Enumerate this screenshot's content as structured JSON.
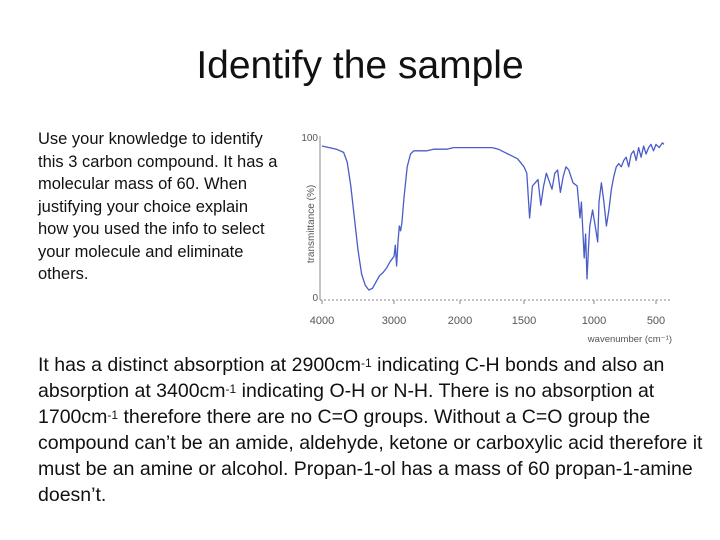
{
  "slide": {
    "title": "Identify the sample",
    "intro": "Use your knowledge to identify this 3 carbon compound. It has a molecular mass of 60. When justifying your choice explain how you used the info to select your molecule and eliminate others."
  },
  "answer": {
    "seg1": "It has a distinct absorption at 2900cm",
    "sup1": "-1",
    "seg2": " indicating C-H bonds and also an absorption at 3400cm",
    "sup2": "-1",
    "seg3": " indicating O-H or N-H. There is no absorption at 1700cm",
    "sup3": "-1",
    "seg4": " therefore there are no C=O groups. Without a C=O group the compound can’t be an amide, aldehyde, ketone or carboxylic acid therefore it must be an amine or alcohol. Propan-1-ol has a mass of 60 propan-1-amine doesn’t."
  },
  "chart_data": {
    "type": "line",
    "xlabel": "wavenumber (cm⁻¹)",
    "ylabel": "transmittance (%)",
    "xlim": [
      4000,
      450
    ],
    "ylim": [
      0,
      100
    ],
    "x_reversed": true,
    "x_ticks": [
      "4000",
      "3000",
      "2000",
      "1500",
      "1000",
      "500"
    ],
    "y_ticks": [
      "100",
      "0"
    ],
    "line_color": "#4a5cc8",
    "series": [
      {
        "points": [
          [
            4000,
            95
          ],
          [
            3900,
            94
          ],
          [
            3800,
            93
          ],
          [
            3700,
            91
          ],
          [
            3650,
            85
          ],
          [
            3600,
            70
          ],
          [
            3550,
            50
          ],
          [
            3500,
            30
          ],
          [
            3450,
            15
          ],
          [
            3400,
            8
          ],
          [
            3350,
            5
          ],
          [
            3300,
            6
          ],
          [
            3250,
            10
          ],
          [
            3200,
            14
          ],
          [
            3150,
            16
          ],
          [
            3100,
            19
          ],
          [
            3050,
            23
          ],
          [
            3000,
            26
          ],
          [
            2980,
            33
          ],
          [
            2960,
            20
          ],
          [
            2940,
            35
          ],
          [
            2920,
            45
          ],
          [
            2900,
            42
          ],
          [
            2880,
            47
          ],
          [
            2850,
            62
          ],
          [
            2800,
            82
          ],
          [
            2750,
            90
          ],
          [
            2700,
            92
          ],
          [
            2600,
            92
          ],
          [
            2500,
            92
          ],
          [
            2400,
            93
          ],
          [
            2300,
            93
          ],
          [
            2200,
            93
          ],
          [
            2100,
            94
          ],
          [
            2000,
            94
          ],
          [
            1900,
            94
          ],
          [
            1800,
            94
          ],
          [
            1750,
            94
          ],
          [
            1700,
            93
          ],
          [
            1650,
            91
          ],
          [
            1600,
            89
          ],
          [
            1550,
            87
          ],
          [
            1500,
            82
          ],
          [
            1480,
            78
          ],
          [
            1460,
            50
          ],
          [
            1440,
            70
          ],
          [
            1420,
            72
          ],
          [
            1400,
            74
          ],
          [
            1380,
            58
          ],
          [
            1360,
            70
          ],
          [
            1340,
            78
          ],
          [
            1300,
            68
          ],
          [
            1280,
            78
          ],
          [
            1260,
            80
          ],
          [
            1240,
            66
          ],
          [
            1220,
            76
          ],
          [
            1200,
            82
          ],
          [
            1180,
            80
          ],
          [
            1150,
            72
          ],
          [
            1120,
            70
          ],
          [
            1100,
            50
          ],
          [
            1090,
            60
          ],
          [
            1070,
            25
          ],
          [
            1060,
            40
          ],
          [
            1050,
            12
          ],
          [
            1040,
            30
          ],
          [
            1030,
            45
          ],
          [
            1010,
            55
          ],
          [
            990,
            45
          ],
          [
            970,
            35
          ],
          [
            960,
            60
          ],
          [
            940,
            72
          ],
          [
            920,
            60
          ],
          [
            900,
            45
          ],
          [
            880,
            55
          ],
          [
            860,
            68
          ],
          [
            840,
            76
          ],
          [
            820,
            82
          ],
          [
            800,
            84
          ],
          [
            780,
            82
          ],
          [
            760,
            86
          ],
          [
            740,
            88
          ],
          [
            720,
            82
          ],
          [
            700,
            90
          ],
          [
            680,
            92
          ],
          [
            660,
            86
          ],
          [
            640,
            94
          ],
          [
            620,
            88
          ],
          [
            600,
            95
          ],
          [
            580,
            90
          ],
          [
            560,
            94
          ],
          [
            540,
            96
          ],
          [
            520,
            92
          ],
          [
            500,
            96
          ],
          [
            480,
            94
          ],
          [
            460,
            97
          ],
          [
            450,
            96
          ]
        ]
      }
    ]
  }
}
